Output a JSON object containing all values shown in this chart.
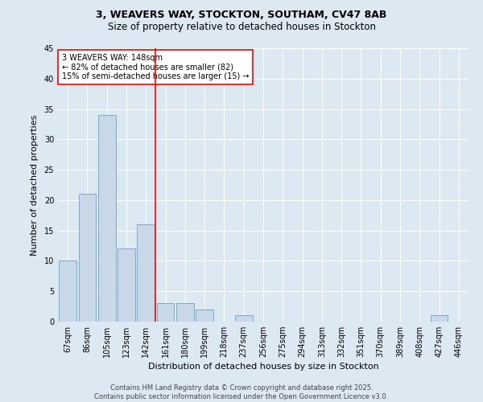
{
  "title1": "3, WEAVERS WAY, STOCKTON, SOUTHAM, CV47 8AB",
  "title2": "Size of property relative to detached houses in Stockton",
  "xlabel": "Distribution of detached houses by size in Stockton",
  "ylabel": "Number of detached properties",
  "categories": [
    "67sqm",
    "86sqm",
    "105sqm",
    "123sqm",
    "142sqm",
    "161sqm",
    "180sqm",
    "199sqm",
    "218sqm",
    "237sqm",
    "256sqm",
    "275sqm",
    "294sqm",
    "313sqm",
    "332sqm",
    "351sqm",
    "370sqm",
    "389sqm",
    "408sqm",
    "427sqm",
    "446sqm"
  ],
  "values": [
    10,
    21,
    34,
    12,
    16,
    3,
    3,
    2,
    0,
    1,
    0,
    0,
    0,
    0,
    0,
    0,
    0,
    0,
    0,
    1,
    0
  ],
  "bar_color": "#c8d8e8",
  "bar_edge_color": "#7aabcc",
  "vline_x": 4.5,
  "vline_color": "red",
  "annotation_text": "3 WEAVERS WAY: 148sqm\n← 82% of detached houses are smaller (82)\n15% of semi-detached houses are larger (15) →",
  "annotation_box_color": "white",
  "annotation_box_edge_color": "red",
  "ylim": [
    0,
    45
  ],
  "yticks": [
    0,
    5,
    10,
    15,
    20,
    25,
    30,
    35,
    40,
    45
  ],
  "background_color": "#dce8f2",
  "plot_background_color": "#dce8f2",
  "footer": "Contains HM Land Registry data © Crown copyright and database right 2025.\nContains public sector information licensed under the Open Government Licence v3.0.",
  "title_fontsize": 9,
  "subtitle_fontsize": 8.5,
  "tick_fontsize": 7,
  "label_fontsize": 8,
  "annotation_fontsize": 7,
  "footer_fontsize": 6
}
